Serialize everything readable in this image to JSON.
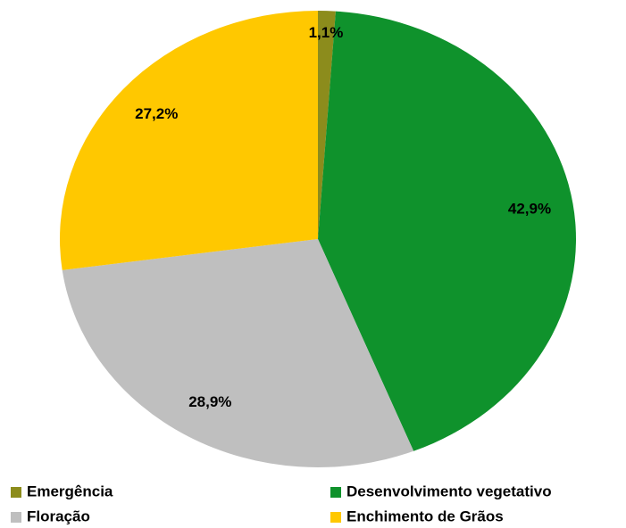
{
  "chart_data": {
    "type": "pie",
    "categories": [
      "Emergência",
      "Desenvolvimento vegetativo",
      "Floração",
      "Enchimento de Grãos"
    ],
    "values": [
      1.1,
      42.9,
      28.9,
      27.2
    ],
    "value_labels": [
      "1,1%",
      "42,9%",
      "28,9%",
      "27,2%"
    ],
    "colors": [
      "#8c8c1c",
      "#0f922c",
      "#bfbfbf",
      "#ffc800"
    ],
    "legend": "bottom"
  }
}
